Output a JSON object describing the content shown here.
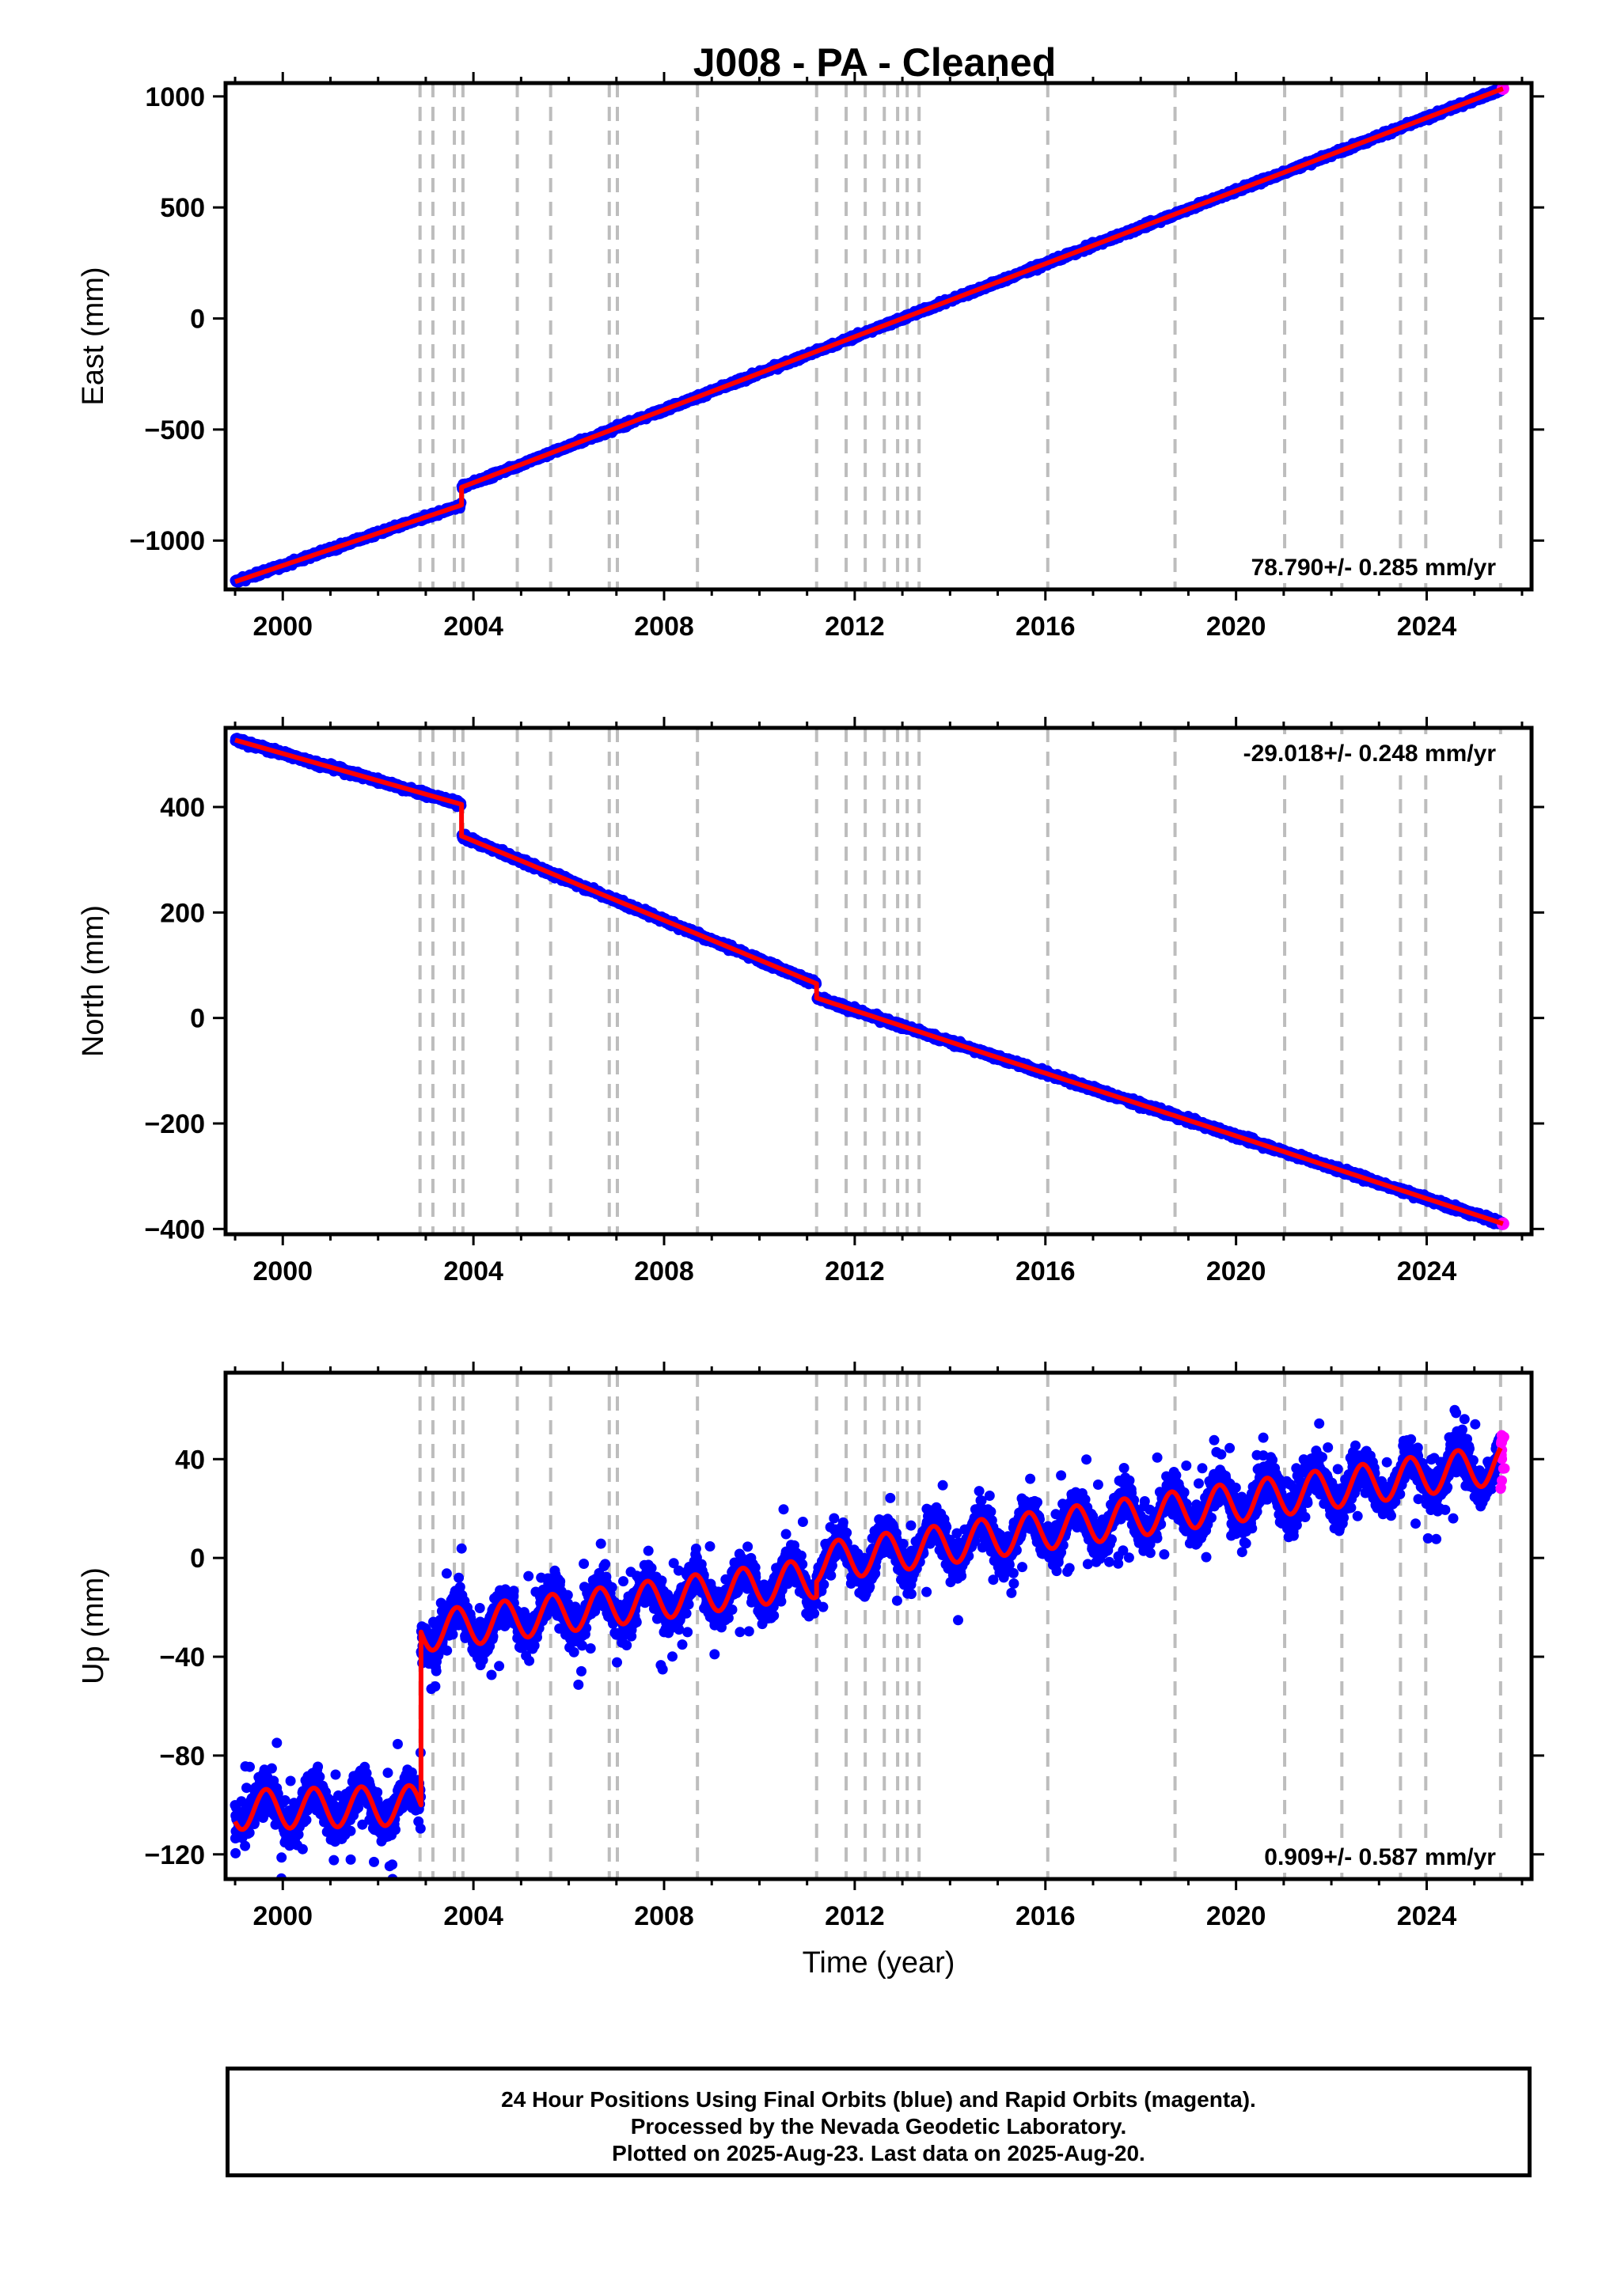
{
  "figure": {
    "title": "J008  - PA - Cleaned"
  },
  "chart_data": [
    {
      "type": "scatter",
      "panel": "east",
      "title": "J008  - PA - Cleaned",
      "xlabel": "",
      "ylabel": "East (mm)",
      "xlim": [
        1998.8,
        2026.2
      ],
      "ylim": [
        -1220,
        1060
      ],
      "xticks": [
        2000,
        2004,
        2008,
        2012,
        2016,
        2020,
        2024
      ],
      "yticks": [
        -1000,
        -500,
        0,
        500,
        1000
      ],
      "rate_text": "78.790+/- 0.285 mm/yr",
      "rate_position": "bottom-right",
      "grid": false,
      "series": [
        {
          "marker": "blue dots",
          "start_year": 1999.0,
          "end_year": 2025.6,
          "segments": [
            {
              "x": [
                1999.0,
                2003.75
              ],
              "y": [
                -1185,
                -840
              ]
            },
            {
              "x": [
                2003.75,
                2025.6
              ],
              "y": [
                -760,
                1035
              ]
            }
          ],
          "noise_mm": 8,
          "annual_amplitude_mm": 0
        },
        {
          "marker": "red line",
          "segments": [
            {
              "x": [
                1999.0,
                2003.75
              ],
              "y": [
                -1185,
                -840
              ]
            },
            {
              "x": [
                2003.75,
                2025.6
              ],
              "y": [
                -760,
                1035
              ]
            }
          ]
        }
      ],
      "offset_annotations": {
        "x": [
          2011.2
        ],
        "dy": [
          12
        ]
      }
    },
    {
      "type": "scatter",
      "panel": "north",
      "xlabel": "",
      "ylabel": "North (mm)",
      "xlim": [
        1998.8,
        2026.2
      ],
      "ylim": [
        -410,
        550
      ],
      "xticks": [
        2000,
        2004,
        2008,
        2012,
        2016,
        2020,
        2024
      ],
      "yticks": [
        -400,
        -200,
        0,
        200,
        400
      ],
      "rate_text": "-29.018+/- 0.248 mm/yr",
      "rate_position": "top-right",
      "grid": false,
      "series": [
        {
          "marker": "blue dots",
          "start_year": 1999.0,
          "end_year": 2025.6,
          "segments": [
            {
              "x": [
                1999.0,
                2003.75
              ],
              "y": [
                527,
                405
              ]
            },
            {
              "x": [
                2003.75,
                2011.2
              ],
              "y": [
                345,
                65
              ]
            },
            {
              "x": [
                2011.2,
                2025.6
              ],
              "y": [
                38,
                -390
              ]
            }
          ],
          "noise_mm": 4,
          "annual_amplitude_mm": 0
        },
        {
          "marker": "red line",
          "segments": [
            {
              "x": [
                1999.0,
                2003.75
              ],
              "y": [
                527,
                405
              ]
            },
            {
              "x": [
                2003.75,
                2011.2
              ],
              "y": [
                345,
                65
              ]
            },
            {
              "x": [
                2011.2,
                2025.6
              ],
              "y": [
                38,
                -390
              ]
            }
          ]
        }
      ]
    },
    {
      "type": "scatter",
      "panel": "up",
      "xlabel": "Time (year)",
      "ylabel": "Up (mm)",
      "xlim": [
        1998.8,
        2026.2
      ],
      "ylim": [
        -130,
        75
      ],
      "xticks": [
        2000,
        2004,
        2008,
        2012,
        2016,
        2020,
        2024
      ],
      "yticks": [
        -120,
        -80,
        -40,
        0,
        40
      ],
      "rate_text": "0.909+/- 0.587 mm/yr",
      "rate_position": "bottom-right",
      "grid": false,
      "series": [
        {
          "marker": "blue dots",
          "start_year": 1999.0,
          "end_year": 2025.55,
          "segments": [
            {
              "x": [
                1999.0,
                2002.9
              ],
              "y": [
                -102,
                -100
              ]
            },
            {
              "x": [
                2002.9,
                2011.2
              ],
              "y": [
                -30,
                -8
              ]
            },
            {
              "x": [
                2011.2,
                2025.55
              ],
              "y": [
                -2,
                38
              ]
            }
          ],
          "noise_mm": 6,
          "annual_amplitude_mm": 8
        },
        {
          "marker": "magenta dots",
          "name": "Rapid Orbits",
          "x_range": [
            2025.55,
            2025.64
          ],
          "y_range": [
            25,
            50
          ]
        },
        {
          "marker": "red line",
          "segments": [
            {
              "x": [
                1999.0,
                2002.9
              ],
              "y": [
                -102,
                -100
              ]
            },
            {
              "x": [
                2002.9,
                2011.2
              ],
              "y": [
                -30,
                -8
              ]
            },
            {
              "x": [
                2011.2,
                2025.55
              ],
              "y": [
                -2,
                38
              ]
            }
          ]
        }
      ]
    }
  ],
  "equipment_change_years": [
    2002.88,
    2003.15,
    2003.6,
    2003.78,
    2004.92,
    2005.62,
    2006.85,
    2007.02,
    2008.7,
    2011.2,
    2011.82,
    2012.22,
    2012.62,
    2012.9,
    2013.1,
    2013.35,
    2016.05,
    2018.72,
    2021.02,
    2022.22,
    2023.45,
    2023.98,
    2025.55
  ],
  "colors": {
    "final_orbits": "#0000ff",
    "rapid_orbits": "#ff00ff",
    "model": "#ff0000",
    "equipment_change_lines": "#bdbdbd",
    "frame": "#000000"
  },
  "caption": {
    "line1": "24 Hour Positions Using Final Orbits (blue) and Rapid Orbits (magenta).",
    "line2": "Processed by the Nevada Geodetic Laboratory.",
    "line3": "Plotted on 2025-Aug-23. Last data on 2025-Aug-20."
  }
}
